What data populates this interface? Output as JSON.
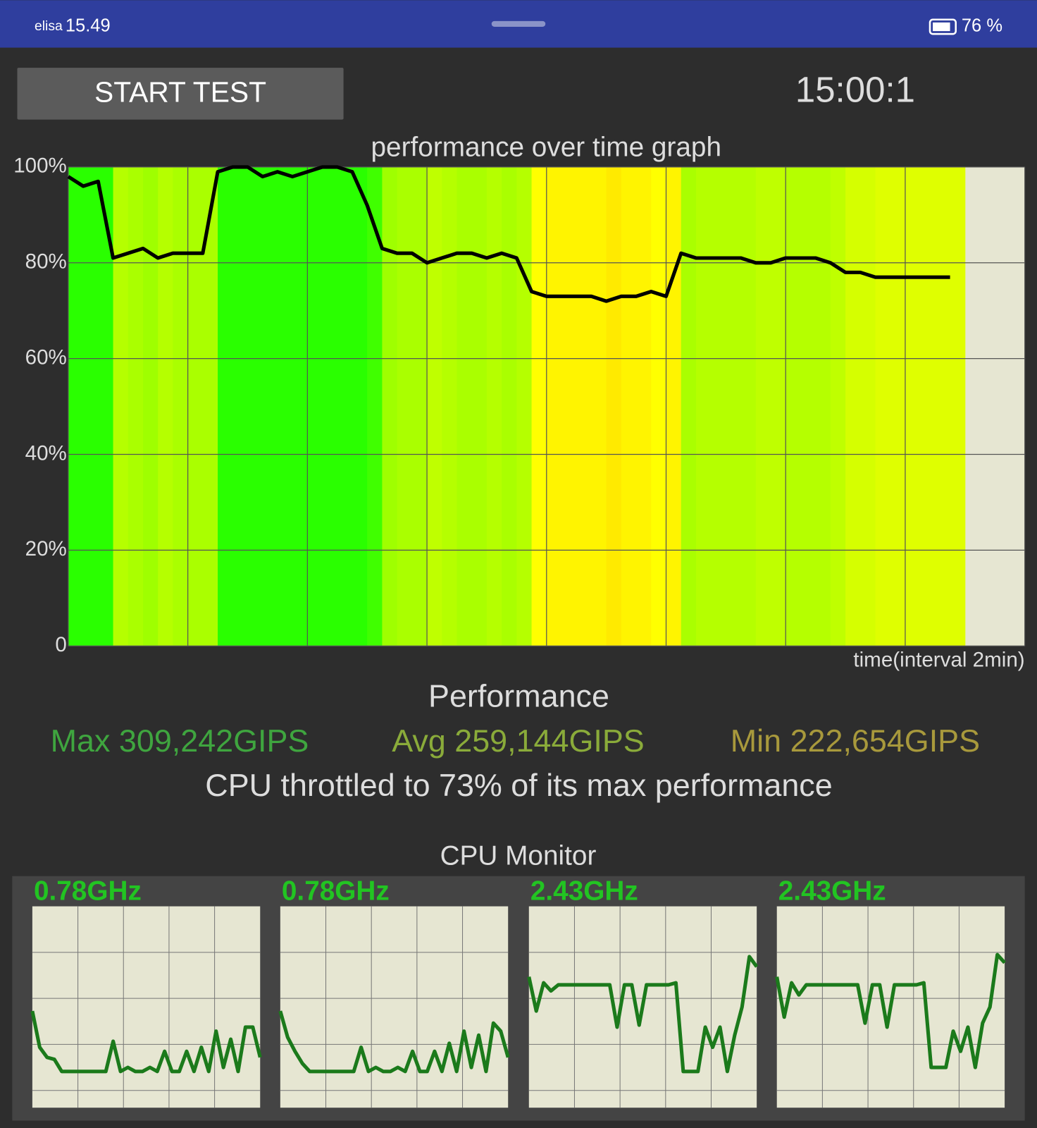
{
  "status_bar": {
    "carrier": "elisa",
    "time": "15.49",
    "battery": "76 %"
  },
  "controls": {
    "button": "START TEST",
    "timer": "15:00:1"
  },
  "stats": {
    "title": "Performance",
    "max": "Max 309,242GIPS",
    "avg": "Avg 259,144GIPS",
    "min": "Min 222,654GIPS",
    "summary": "CPU throttled to 73% of its max performance"
  },
  "cpu_monitor": {
    "title": "CPU Monitor"
  },
  "chart_data": [
    {
      "type": "line",
      "title": "performance over time graph",
      "x_label": "time(interval 2min)",
      "color": "#000000",
      "x": [
        0,
        0.25,
        0.5,
        0.75,
        1,
        1.25,
        1.5,
        1.75,
        2,
        2.25,
        2.5,
        2.75,
        3,
        3.25,
        3.5,
        3.75,
        4,
        4.25,
        4.5,
        4.75,
        5,
        5.25,
        5.5,
        5.75,
        6,
        6.25,
        6.5,
        6.75,
        7,
        7.25,
        7.5,
        7.75,
        8,
        8.25,
        8.5,
        8.75,
        9,
        9.25,
        9.5,
        9.75,
        10,
        10.25,
        10.5,
        10.75,
        11,
        11.25,
        11.5,
        11.75,
        12,
        12.25,
        12.5,
        12.75,
        13,
        13.25,
        13.5,
        13.75,
        14,
        14.25,
        14.5,
        14.75
      ],
      "values": [
        98,
        96,
        97,
        81,
        82,
        83,
        81,
        82,
        82,
        82,
        99,
        100,
        100,
        98,
        99,
        98,
        99,
        100,
        100,
        99,
        92,
        83,
        82,
        82,
        80,
        81,
        82,
        82,
        81,
        82,
        81,
        74,
        73,
        73,
        73,
        73,
        72,
        73,
        73,
        74,
        73,
        82,
        81,
        81,
        81,
        81,
        80,
        80,
        81,
        81,
        81,
        80,
        78,
        78,
        77,
        77,
        77,
        77,
        77,
        77
      ],
      "xlim": [
        0,
        16
      ],
      "xticks": [
        0,
        2,
        4,
        6,
        8,
        10,
        12,
        14,
        16
      ],
      "ylim": [
        0,
        100
      ],
      "yticks": [
        0,
        {
          "value": 20,
          "label": "20%"
        },
        {
          "value": 40,
          "label": "40%"
        },
        {
          "value": 60,
          "label": "60%"
        },
        {
          "value": 80,
          "label": "80%"
        },
        {
          "value": 100,
          "label": "100%"
        }
      ],
      "grid": true
    },
    {
      "type": "line",
      "title": "0.78GHz",
      "color": "#1b7a1b",
      "ylim": [
        0,
        100
      ],
      "values": [
        48,
        30,
        25,
        24,
        18,
        18,
        18,
        18,
        18,
        18,
        18,
        33,
        18,
        20,
        18,
        18,
        20,
        18,
        28,
        18,
        18,
        28,
        18,
        30,
        18,
        38,
        20,
        34,
        18,
        40,
        40,
        25
      ]
    },
    {
      "type": "line",
      "title": "0.78GHz",
      "color": "#1b7a1b",
      "ylim": [
        0,
        100
      ],
      "values": [
        48,
        35,
        28,
        22,
        18,
        18,
        18,
        18,
        18,
        18,
        18,
        30,
        18,
        20,
        18,
        18,
        20,
        18,
        28,
        18,
        18,
        28,
        18,
        32,
        18,
        38,
        20,
        36,
        18,
        42,
        38,
        25
      ]
    },
    {
      "type": "line",
      "title": "2.43GHz",
      "color": "#1b7a1b",
      "ylim": [
        0,
        100
      ],
      "values": [
        65,
        48,
        62,
        58,
        61,
        61,
        61,
        61,
        61,
        61,
        61,
        61,
        40,
        61,
        61,
        41,
        61,
        61,
        61,
        61,
        62,
        18,
        18,
        18,
        40,
        30,
        40,
        18,
        36,
        50,
        75,
        70
      ]
    },
    {
      "type": "line",
      "title": "2.43GHz",
      "color": "#1b7a1b",
      "ylim": [
        0,
        100
      ],
      "values": [
        65,
        45,
        62,
        56,
        61,
        61,
        61,
        61,
        61,
        61,
        61,
        61,
        42,
        61,
        61,
        40,
        61,
        61,
        61,
        61,
        62,
        20,
        20,
        20,
        38,
        28,
        40,
        20,
        42,
        50,
        76,
        72
      ]
    }
  ]
}
